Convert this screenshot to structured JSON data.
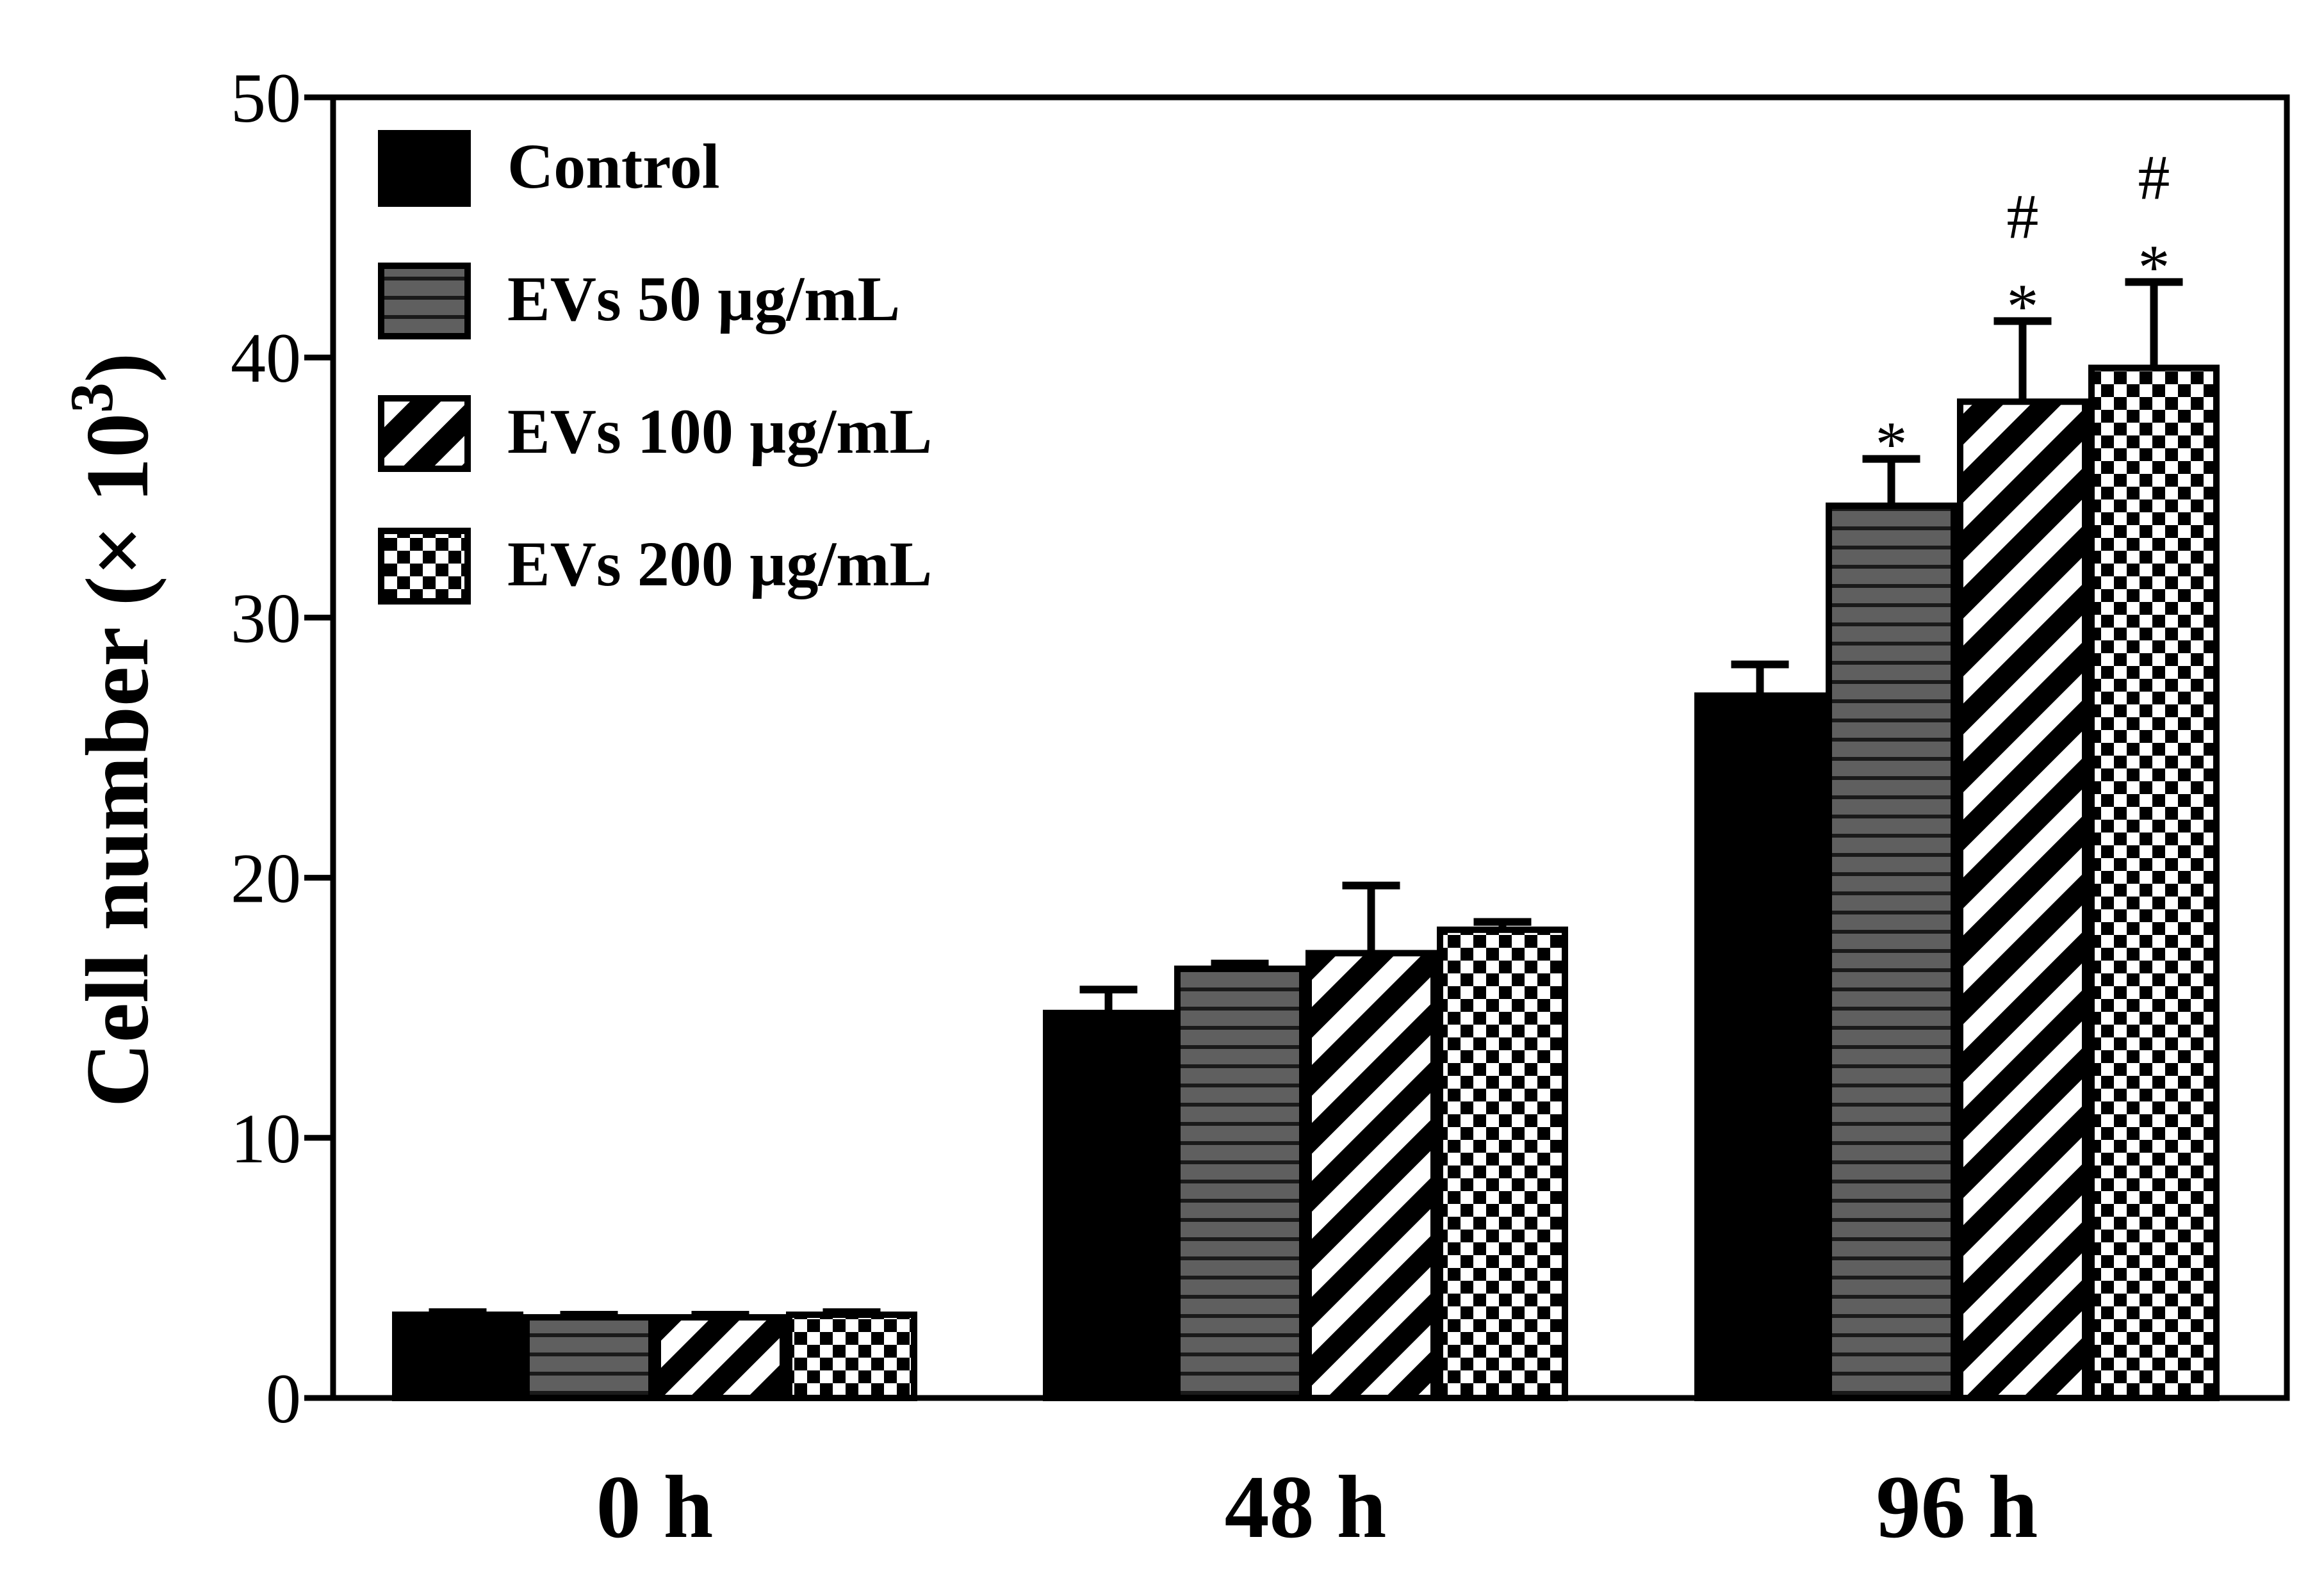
{
  "chart_data": {
    "type": "bar",
    "title": "",
    "xlabel": "",
    "ylabel": "Cell number (× 10",
    "ylabel_superscript": "3",
    "ylabel_close": ")",
    "ylim": [
      0,
      50
    ],
    "yticks": [
      0,
      10,
      20,
      30,
      40,
      50
    ],
    "grid": false,
    "legend_position": "top-left",
    "categories": [
      "0 h",
      "48 h",
      "96 h"
    ],
    "series": [
      {
        "name": "Control",
        "pattern": "solid-black",
        "values": [
          3.2,
          14.8,
          27.0
        ],
        "errors": [
          0.1,
          0.9,
          1.2
        ],
        "annotations": [
          "",
          "",
          ""
        ]
      },
      {
        "name": "EVs 50 µg/mL",
        "pattern": "gray-horizontal-lines",
        "values": [
          3.1,
          16.5,
          34.3
        ],
        "errors": [
          0.1,
          0.2,
          1.8
        ],
        "annotations": [
          "",
          "",
          "*"
        ]
      },
      {
        "name": "EVs 100 µg/mL",
        "pattern": "diagonal-stripes",
        "values": [
          3.1,
          17.1,
          38.3
        ],
        "errors": [
          0.1,
          2.6,
          3.1
        ],
        "annotations": [
          "",
          "",
          "#*"
        ]
      },
      {
        "name": "EVs 200 µg/mL",
        "pattern": "checkerboard",
        "values": [
          3.2,
          18.0,
          39.6
        ],
        "errors": [
          0.1,
          0.3,
          3.3
        ],
        "annotations": [
          "",
          "",
          "#*"
        ]
      }
    ]
  }
}
